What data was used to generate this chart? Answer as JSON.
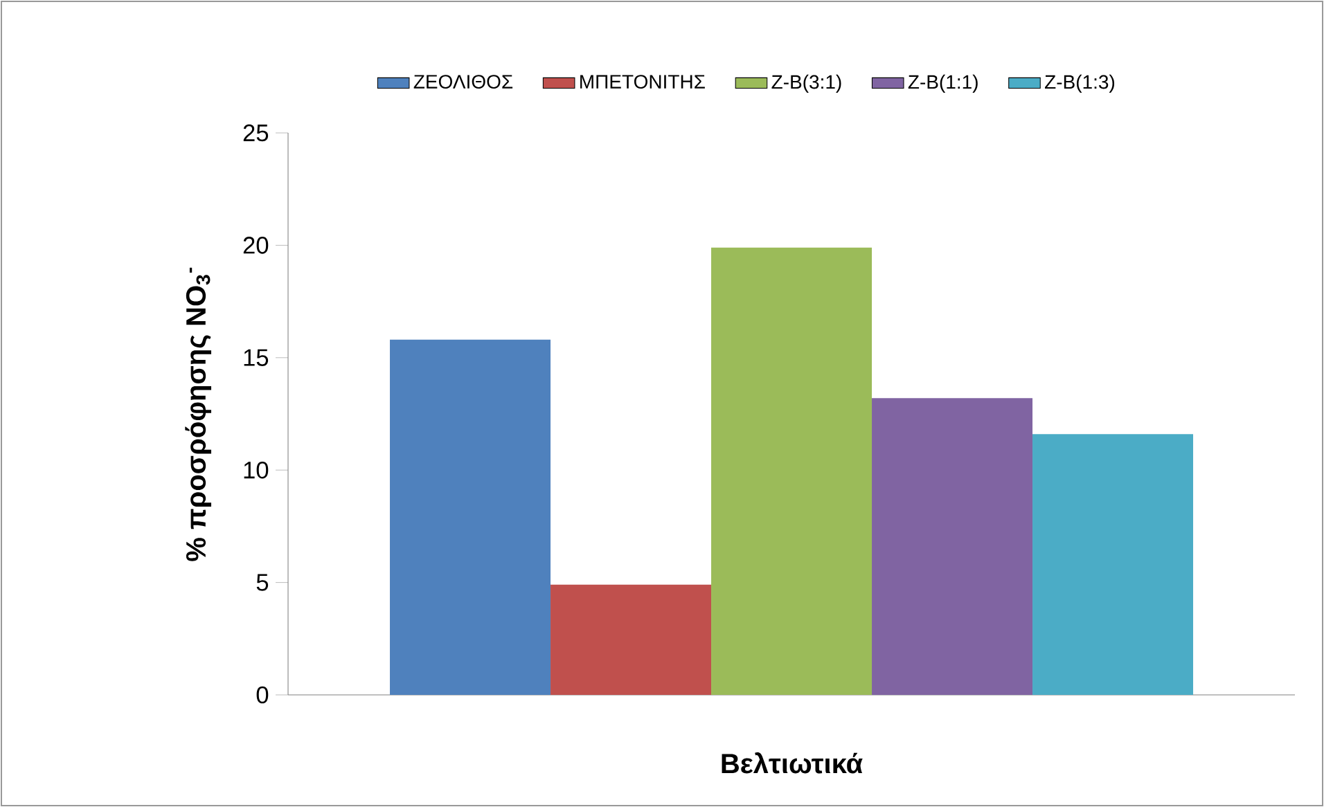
{
  "chart_data": {
    "type": "bar",
    "categories": [
      null
    ],
    "series": [
      {
        "name": "ΖΕΟΛΙΘΟΣ",
        "color": "#4f81bd",
        "values": [
          15.8
        ]
      },
      {
        "name": "ΜΠΕΤΟΝΙΤΗΣ",
        "color": "#c0504d",
        "values": [
          4.9
        ]
      },
      {
        "name": "Z-B(3:1)",
        "color": "#9bbb59",
        "values": [
          19.9
        ]
      },
      {
        "name": "Z-B(1:1)",
        "color": "#8064a2",
        "values": [
          13.2
        ]
      },
      {
        "name": "Z-B(1:3)",
        "color": "#4bacc6",
        "values": [
          11.6
        ]
      }
    ],
    "xlabel": "Βελτιωτικά",
    "ylabel": "% προσρόφησης NO$_{3}$$^{-}$",
    "ylim": [
      0,
      25
    ],
    "yticks": [
      0,
      5,
      10,
      15,
      20,
      25
    ],
    "grid": false,
    "legend": "top"
  }
}
